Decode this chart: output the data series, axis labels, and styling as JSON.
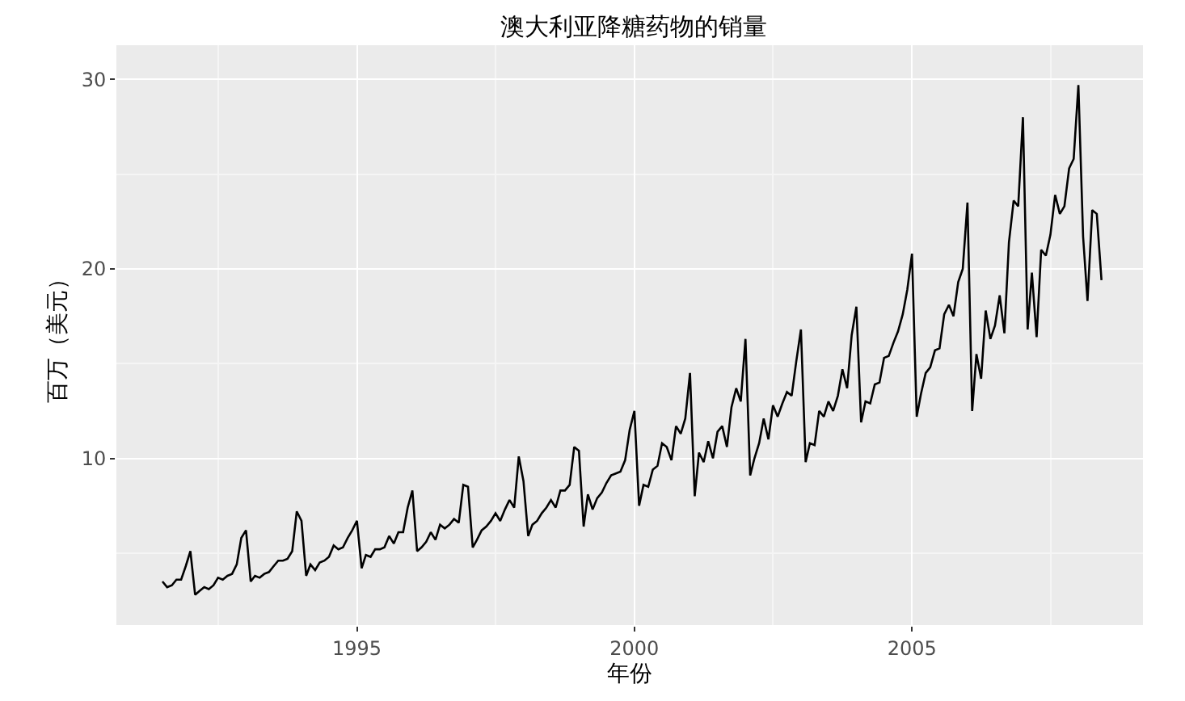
{
  "chart_data": {
    "type": "line",
    "title": "澳大利亚降糖药物的销量",
    "xlabel": "年份",
    "ylabel": "百万（美元）",
    "x": [
      "1991-07",
      "1991-08",
      "1991-09",
      "1991-10",
      "1991-11",
      "1991-12",
      "1992-01",
      "1992-02",
      "1992-03",
      "1992-04",
      "1992-05",
      "1992-06",
      "1992-07",
      "1992-08",
      "1992-09",
      "1992-10",
      "1992-11",
      "1992-12",
      "1993-01",
      "1993-02",
      "1993-03",
      "1993-04",
      "1993-05",
      "1993-06",
      "1993-07",
      "1993-08",
      "1993-09",
      "1993-10",
      "1993-11",
      "1993-12",
      "1994-01",
      "1994-02",
      "1994-03",
      "1994-04",
      "1994-05",
      "1994-06",
      "1994-07",
      "1994-08",
      "1994-09",
      "1994-10",
      "1994-11",
      "1994-12",
      "1995-01",
      "1995-02",
      "1995-03",
      "1995-04",
      "1995-05",
      "1995-06",
      "1995-07",
      "1995-08",
      "1995-09",
      "1995-10",
      "1995-11",
      "1995-12",
      "1996-01",
      "1996-02",
      "1996-03",
      "1996-04",
      "1996-05",
      "1996-06",
      "1996-07",
      "1996-08",
      "1996-09",
      "1996-10",
      "1996-11",
      "1996-12",
      "1997-01",
      "1997-02",
      "1997-03",
      "1997-04",
      "1997-05",
      "1997-06",
      "1997-07",
      "1997-08",
      "1997-09",
      "1997-10",
      "1997-11",
      "1997-12",
      "1998-01",
      "1998-02",
      "1998-03",
      "1998-04",
      "1998-05",
      "1998-06",
      "1998-07",
      "1998-08",
      "1998-09",
      "1998-10",
      "1998-11",
      "1998-12",
      "1999-01",
      "1999-02",
      "1999-03",
      "1999-04",
      "1999-05",
      "1999-06",
      "1999-07",
      "1999-08",
      "1999-09",
      "1999-10",
      "1999-11",
      "1999-12",
      "2000-01",
      "2000-02",
      "2000-03",
      "2000-04",
      "2000-05",
      "2000-06",
      "2000-07",
      "2000-08",
      "2000-09",
      "2000-10",
      "2000-11",
      "2000-12",
      "2001-01",
      "2001-02",
      "2001-03",
      "2001-04",
      "2001-05",
      "2001-06",
      "2001-07",
      "2001-08",
      "2001-09",
      "2001-10",
      "2001-11",
      "2001-12",
      "2002-01",
      "2002-02",
      "2002-03",
      "2002-04",
      "2002-05",
      "2002-06",
      "2002-07",
      "2002-08",
      "2002-09",
      "2002-10",
      "2002-11",
      "2002-12",
      "2003-01",
      "2003-02",
      "2003-03",
      "2003-04",
      "2003-05",
      "2003-06",
      "2003-07",
      "2003-08",
      "2003-09",
      "2003-10",
      "2003-11",
      "2003-12",
      "2004-01",
      "2004-02",
      "2004-03",
      "2004-04",
      "2004-05",
      "2004-06",
      "2004-07",
      "2004-08",
      "2004-09",
      "2004-10",
      "2004-11",
      "2004-12",
      "2005-01",
      "2005-02",
      "2005-03",
      "2005-04",
      "2005-05",
      "2005-06",
      "2005-07",
      "2005-08",
      "2005-09",
      "2005-10",
      "2005-11",
      "2005-12",
      "2006-01",
      "2006-02",
      "2006-03",
      "2006-04",
      "2006-05",
      "2006-06",
      "2006-07",
      "2006-08",
      "2006-09",
      "2006-10",
      "2006-11",
      "2006-12",
      "2007-01",
      "2007-02",
      "2007-03",
      "2007-04",
      "2007-05",
      "2007-06",
      "2007-07",
      "2007-08",
      "2007-09",
      "2007-10",
      "2007-11",
      "2007-12",
      "2008-01",
      "2008-02",
      "2008-03",
      "2008-04",
      "2008-05",
      "2008-06"
    ],
    "series": [
      {
        "color": "#000000",
        "values": [
          3.5,
          3.2,
          3.3,
          3.6,
          3.6,
          4.3,
          5.1,
          2.8,
          3.0,
          3.2,
          3.1,
          3.3,
          3.7,
          3.6,
          3.8,
          3.9,
          4.4,
          5.8,
          6.2,
          3.5,
          3.8,
          3.7,
          3.9,
          4.0,
          4.3,
          4.6,
          4.6,
          4.7,
          5.1,
          7.2,
          6.7,
          3.8,
          4.4,
          4.1,
          4.5,
          4.6,
          4.8,
          5.4,
          5.2,
          5.3,
          5.8,
          6.2,
          6.7,
          4.2,
          4.9,
          4.8,
          5.2,
          5.2,
          5.3,
          5.9,
          5.5,
          6.1,
          6.1,
          7.4,
          8.3,
          5.1,
          5.3,
          5.6,
          6.1,
          5.7,
          6.5,
          6.3,
          6.5,
          6.8,
          6.6,
          8.6,
          8.5,
          5.3,
          5.7,
          6.2,
          6.4,
          6.7,
          7.1,
          6.7,
          7.3,
          7.8,
          7.4,
          10.1,
          8.8,
          5.9,
          6.5,
          6.7,
          7.1,
          7.4,
          7.8,
          7.4,
          8.3,
          8.3,
          8.6,
          10.6,
          10.4,
          6.4,
          8.1,
          7.3,
          7.9,
          8.2,
          8.7,
          9.1,
          9.2,
          9.3,
          9.9,
          11.5,
          12.5,
          7.5,
          8.6,
          8.5,
          9.4,
          9.6,
          10.8,
          10.6,
          9.9,
          11.7,
          11.3,
          12.1,
          14.5,
          8.0,
          10.3,
          9.8,
          10.9,
          10.0,
          11.4,
          11.7,
          10.6,
          12.7,
          13.7,
          13.0,
          16.3,
          9.1,
          10.0,
          10.8,
          12.1,
          11.0,
          12.8,
          12.2,
          12.9,
          13.5,
          13.3,
          15.1,
          16.8,
          9.8,
          10.8,
          10.7,
          12.5,
          12.2,
          13.0,
          12.5,
          13.3,
          14.7,
          13.7,
          16.5,
          18.0,
          11.9,
          13.0,
          12.9,
          13.9,
          14.0,
          15.3,
          15.4,
          16.1,
          16.7,
          17.6,
          18.9,
          20.8,
          12.2,
          13.4,
          14.5,
          14.8,
          15.7,
          15.8,
          17.6,
          18.1,
          17.5,
          19.3,
          20.0,
          23.5,
          12.5,
          15.5,
          14.2,
          17.8,
          16.3,
          17.0,
          18.6,
          16.6,
          21.4,
          23.6,
          23.3,
          28.0,
          16.8,
          19.8,
          16.4,
          21.0,
          20.7,
          21.8,
          23.9,
          22.9,
          23.3,
          25.3,
          25.8,
          29.7,
          21.7,
          18.3,
          23.1,
          22.9,
          19.4
        ]
      }
    ],
    "xlim": [
      "1990-09",
      "2009-03"
    ],
    "xticks": [
      {
        "value": "1995-01",
        "label": "1995"
      },
      {
        "value": "2000-01",
        "label": "2000"
      },
      {
        "value": "2005-01",
        "label": "2005"
      }
    ],
    "ylim": [
      1.2,
      31.8
    ],
    "yticks": [
      10,
      20,
      30
    ],
    "grid": true,
    "marker": "none",
    "line_style": "solid"
  }
}
